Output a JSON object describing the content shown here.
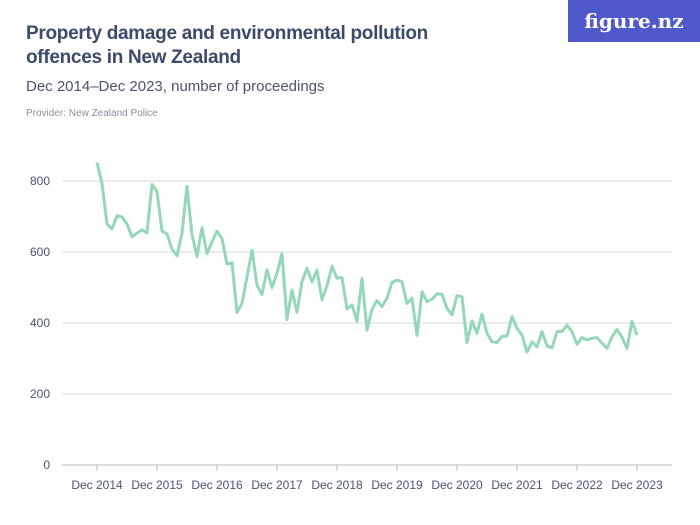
{
  "title": "Property damage and environmental pollution offences in New Zealand",
  "subtitle": "Dec 2014–Dec 2023, number of proceedings",
  "provider": "Provider: New Zealand Police",
  "logo": "figure.nz",
  "colors": {
    "line": "#95d8b8",
    "logo_bg": "#5059c9",
    "grid": "#d9d9d9"
  },
  "chart_data": {
    "type": "line",
    "title": "Property damage and environmental pollution offences in New Zealand",
    "xlabel": "",
    "ylabel": "",
    "start": "Dec 2014",
    "frequency": "monthly",
    "end": "Dec 2023",
    "x_ticks": [
      "Dec 2014",
      "Dec 2015",
      "Dec 2016",
      "Dec 2017",
      "Dec 2018",
      "Dec 2019",
      "Dec 2020",
      "Dec 2021",
      "Dec 2022",
      "Dec 2023"
    ],
    "y_ticks": [
      0,
      200,
      400,
      600,
      800
    ],
    "ylim": [
      0,
      850
    ],
    "grid": true,
    "values": [
      852,
      793,
      679,
      665,
      702,
      699,
      679,
      643,
      653,
      662,
      654,
      790,
      770,
      659,
      651,
      608,
      589,
      653,
      785,
      648,
      587,
      668,
      595,
      629,
      659,
      638,
      566,
      570,
      430,
      455,
      530,
      605,
      507,
      480,
      550,
      500,
      540,
      595,
      410,
      493,
      430,
      516,
      554,
      516,
      549,
      465,
      505,
      560,
      526,
      528,
      440,
      451,
      405,
      525,
      380,
      439,
      463,
      446,
      470,
      514,
      521,
      516,
      455,
      470,
      365,
      488,
      460,
      467,
      482,
      481,
      441,
      423,
      477,
      474,
      345,
      406,
      371,
      425,
      371,
      347,
      345,
      363,
      363,
      418,
      385,
      366,
      318,
      347,
      333,
      376,
      335,
      330,
      376,
      376,
      394,
      376,
      340,
      359,
      352,
      357,
      359,
      343,
      329,
      361,
      382,
      360,
      328,
      405,
      366
    ]
  }
}
